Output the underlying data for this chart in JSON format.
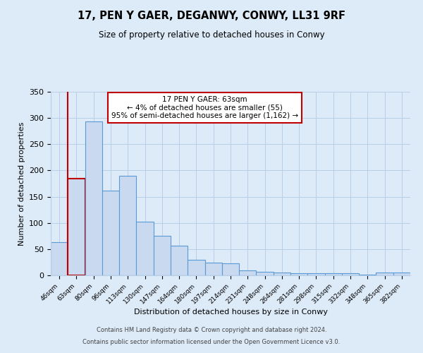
{
  "title": "17, PEN Y GAER, DEGANWY, CONWY, LL31 9RF",
  "subtitle": "Size of property relative to detached houses in Conwy",
  "xlabel": "Distribution of detached houses by size in Conwy",
  "ylabel": "Number of detached properties",
  "bar_labels": [
    "46sqm",
    "63sqm",
    "80sqm",
    "96sqm",
    "113sqm",
    "130sqm",
    "147sqm",
    "164sqm",
    "180sqm",
    "197sqm",
    "214sqm",
    "231sqm",
    "248sqm",
    "264sqm",
    "281sqm",
    "298sqm",
    "315sqm",
    "332sqm",
    "348sqm",
    "365sqm",
    "382sqm"
  ],
  "bar_heights": [
    63,
    185,
    293,
    161,
    190,
    102,
    76,
    56,
    30,
    24,
    23,
    10,
    7,
    5,
    4,
    4,
    4,
    4,
    1,
    6,
    6
  ],
  "bar_color": "#c9d9f0",
  "bar_edge_color": "#5b9bd5",
  "highlight_bar_index": 1,
  "highlight_color": "#c00000",
  "annotation_title": "17 PEN Y GAER: 63sqm",
  "annotation_line1": "← 4% of detached houses are smaller (55)",
  "annotation_line2": "95% of semi-detached houses are larger (1,162) →",
  "annotation_box_color": "#ffffff",
  "annotation_box_edge": "#c00000",
  "ylim": [
    0,
    350
  ],
  "yticks": [
    0,
    50,
    100,
    150,
    200,
    250,
    300,
    350
  ],
  "footer1": "Contains HM Land Registry data © Crown copyright and database right 2024.",
  "footer2": "Contains public sector information licensed under the Open Government Licence v3.0.",
  "bg_color": "#ddeaf8",
  "plot_bg_color": "#ddeaf8"
}
